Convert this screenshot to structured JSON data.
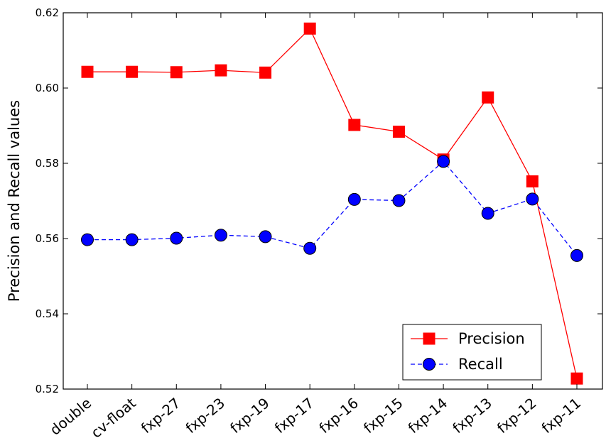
{
  "chart_data": {
    "type": "line",
    "title": "",
    "xlabel": "",
    "ylabel": "Precision and Recall values",
    "categories": [
      "double",
      "cv-float",
      "fxp-27",
      "fxp-23",
      "fxp-19",
      "fxp-17",
      "fxp-16",
      "fxp-15",
      "fxp-14",
      "fxp-13",
      "fxp-12",
      "fxp-11"
    ],
    "ylim": [
      0.52,
      0.62
    ],
    "yticks": [
      "0.52",
      "0.54",
      "0.56",
      "0.58",
      "0.60",
      "0.62"
    ],
    "grid": false,
    "legend_position": "lower-right",
    "series": [
      {
        "name": "Precision",
        "color": "#ff0000",
        "marker": "square",
        "line_style": "solid",
        "values": [
          0.6043,
          0.6043,
          0.6042,
          0.6047,
          0.6041,
          0.6158,
          0.5902,
          0.5884,
          0.581,
          0.5975,
          0.5752,
          0.5228
        ]
      },
      {
        "name": "Recall",
        "color": "#0000ff",
        "marker": "circle",
        "line_style": "dashed",
        "values": [
          0.5597,
          0.5597,
          0.5601,
          0.5609,
          0.5605,
          0.5574,
          0.5704,
          0.5701,
          0.5805,
          0.5667,
          0.5705,
          0.5555
        ]
      }
    ]
  }
}
